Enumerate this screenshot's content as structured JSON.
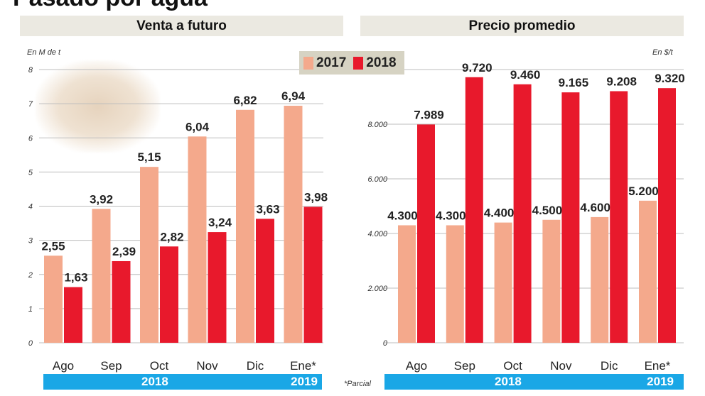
{
  "title": "Pasado por agua",
  "legend": [
    {
      "label": "2017",
      "color": "#f4a98c"
    },
    {
      "label": "2018",
      "color": "#e8192c"
    }
  ],
  "footnote": "*Parcial",
  "chart_data": [
    {
      "type": "bar",
      "title": "Venta a futuro",
      "unit": "En M de t",
      "categories": [
        "Ago",
        "Sep",
        "Oct",
        "Nov",
        "Dic",
        "Ene*"
      ],
      "year_band": [
        "2018",
        "2019"
      ],
      "series": [
        {
          "name": "2017",
          "values": [
            2.55,
            3.92,
            5.15,
            6.04,
            6.82,
            6.94
          ],
          "labels": [
            "2,55",
            "3,92",
            "5,15",
            "6,04",
            "6,82",
            "6,94"
          ]
        },
        {
          "name": "2018",
          "values": [
            1.63,
            2.39,
            2.82,
            3.24,
            3.63,
            3.98
          ],
          "labels": [
            "1,63",
            "2,39",
            "2,82",
            "3,24",
            "3,63",
            "3,98"
          ]
        }
      ],
      "ylim": [
        0,
        8
      ],
      "yticks": [
        0,
        1,
        2,
        3,
        4,
        5,
        6,
        7,
        8
      ],
      "ytick_labels": [
        "0",
        "1",
        "2",
        "3",
        "4",
        "5",
        "6",
        "7",
        "8"
      ],
      "grid": true
    },
    {
      "type": "bar",
      "title": "Precio promedio",
      "unit": "En $/t",
      "categories": [
        "Ago",
        "Sep",
        "Oct",
        "Nov",
        "Dic",
        "Ene*"
      ],
      "year_band": [
        "2018",
        "2019"
      ],
      "series": [
        {
          "name": "2017",
          "values": [
            4300,
            4300,
            4400,
            4500,
            4600,
            5200
          ],
          "labels": [
            "4.300",
            "4.300",
            "4.400",
            "4.500",
            "4.600",
            "5.200"
          ]
        },
        {
          "name": "2018",
          "values": [
            7989,
            9720,
            9460,
            9165,
            9208,
            9320
          ],
          "labels": [
            "7.989",
            "9.720",
            "9.460",
            "9.165",
            "9.208",
            "9.320"
          ]
        }
      ],
      "ylim": [
        0,
        10000
      ],
      "yticks": [
        0,
        2000,
        4000,
        6000,
        8000,
        10000
      ],
      "ytick_labels": [
        "0",
        "2.000",
        "4.000",
        "6.000",
        "8.000",
        ""
      ],
      "grid": true
    }
  ]
}
